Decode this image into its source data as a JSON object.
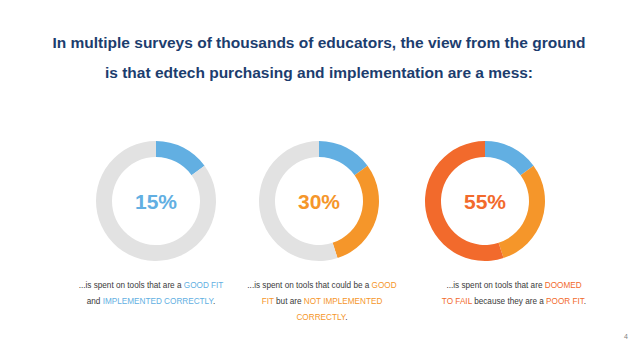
{
  "title": "In multiple surveys of thousands of educators, the view from the ground is that edtech purchasing and implementation are a mess:",
  "footer": {
    "page_number": 4
  },
  "chart_data": [
    {
      "type": "pie",
      "values": [
        15,
        85
      ],
      "colors": [
        "#62afe2",
        "#e2e2e2"
      ],
      "value_labels": [
        "15%",
        null
      ],
      "annotation": [
        [
          {
            "text": "...is spent on tools that are a "
          },
          {
            "text": "GOOD FIT",
            "color": "#62afe2"
          }
        ],
        [
          {
            "text": "and "
          },
          {
            "text": "IMPLEMENTED CORRECTLY",
            "color": "#62afe2"
          },
          {
            "text": "."
          }
        ]
      ]
    },
    {
      "type": "pie",
      "values": [
        15,
        30,
        55
      ],
      "colors": [
        "#62afe2",
        "#f5962a",
        "#e2e2e2"
      ],
      "value_labels": [
        null,
        "30%",
        null
      ],
      "annotation": [
        [
          {
            "text": "...is spent on tools that could be a "
          },
          {
            "text": "GOOD",
            "color": "#f5962a"
          }
        ],
        [
          {
            "text": "FIT",
            "color": "#f5962a"
          },
          {
            "text": " but are "
          },
          {
            "text": "NOT IMPLEMENTED",
            "color": "#f5962a"
          }
        ],
        [
          {
            "text": "CORRECTLY",
            "color": "#f5962a"
          },
          {
            "text": "."
          }
        ]
      ]
    },
    {
      "type": "pie",
      "values": [
        15,
        30,
        55
      ],
      "colors": [
        "#62afe2",
        "#f5962a",
        "#f26a2c"
      ],
      "value_labels": [
        null,
        null,
        "55%"
      ],
      "annotation": [
        [
          {
            "text": "...is spent on tools that are "
          },
          {
            "text": "DOOMED",
            "color": "#f26a2c"
          }
        ],
        [
          {
            "text": "TO FAIL",
            "color": "#f26a2c"
          },
          {
            "text": " because they are a "
          },
          {
            "text": "POOR FIT",
            "color": "#f26a2c"
          },
          {
            "text": "."
          }
        ]
      ]
    }
  ]
}
